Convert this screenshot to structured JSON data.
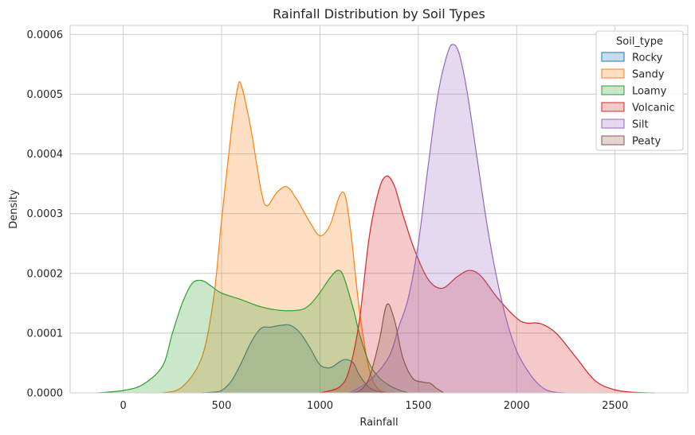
{
  "chart_data": {
    "type": "area",
    "title": "Rainfall Distribution by Soil Types",
    "xlabel": "Rainfall",
    "ylabel": "Density",
    "xlim": [
      -270,
      2870
    ],
    "ylim": [
      0,
      0.000615
    ],
    "xticks": [
      0,
      500,
      1000,
      1500,
      2000,
      2500
    ],
    "xtick_labels": [
      "0",
      "500",
      "1000",
      "1500",
      "2000",
      "2500"
    ],
    "yticks": [
      0,
      0.0001,
      0.0002,
      0.0003,
      0.0004,
      0.0005,
      0.0006
    ],
    "ytick_labels": [
      "0.0000",
      "0.0001",
      "0.0002",
      "0.0003",
      "0.0004",
      "0.0005",
      "0.0006"
    ],
    "grid": true,
    "legend": {
      "title": "Soil_type",
      "placement": "top-right"
    },
    "series": [
      {
        "name": "Rocky",
        "color": "#1f77b4",
        "points": [
          [
            400,
            0
          ],
          [
            450,
            1e-06
          ],
          [
            500,
            4e-06
          ],
          [
            550,
            2e-05
          ],
          [
            600,
            5e-05
          ],
          [
            650,
            8.5e-05
          ],
          [
            700,
            0.000108
          ],
          [
            750,
            0.00011
          ],
          [
            800,
            0.000113
          ],
          [
            850,
            0.000113
          ],
          [
            900,
            0.0001
          ],
          [
            950,
            7.5e-05
          ],
          [
            1000,
            4.7e-05
          ],
          [
            1050,
            4.2e-05
          ],
          [
            1100,
            5.2e-05
          ],
          [
            1130,
            5.6e-05
          ],
          [
            1170,
            5e-05
          ],
          [
            1200,
            3e-05
          ],
          [
            1250,
            9e-06
          ],
          [
            1300,
            2e-06
          ],
          [
            1350,
            0
          ]
        ]
      },
      {
        "name": "Sandy",
        "color": "#ff7f0e",
        "points": [
          [
            200,
            0
          ],
          [
            300,
            1e-05
          ],
          [
            400,
            6e-05
          ],
          [
            460,
            0.00016
          ],
          [
            500,
            0.00029
          ],
          [
            550,
            0.00044
          ],
          [
            580,
            0.000508
          ],
          [
            600,
            0.000515
          ],
          [
            650,
            0.00044
          ],
          [
            700,
            0.00034
          ],
          [
            730,
            0.000313
          ],
          [
            780,
            0.000335
          ],
          [
            830,
            0.000345
          ],
          [
            880,
            0.000325
          ],
          [
            950,
            0.000285
          ],
          [
            1000,
            0.000263
          ],
          [
            1050,
            0.00028
          ],
          [
            1100,
            0.00033
          ],
          [
            1130,
            0.000328
          ],
          [
            1160,
            0.00026
          ],
          [
            1200,
            0.00014
          ],
          [
            1250,
            4e-05
          ],
          [
            1300,
            5e-06
          ],
          [
            1360,
            0
          ]
        ]
      },
      {
        "name": "Loamy",
        "color": "#2ca02c",
        "points": [
          [
            -130,
            0
          ],
          [
            0,
            4e-06
          ],
          [
            100,
            1.4e-05
          ],
          [
            200,
            4.5e-05
          ],
          [
            250,
            0.0001
          ],
          [
            300,
            0.00015
          ],
          [
            350,
            0.000183
          ],
          [
            400,
            0.000188
          ],
          [
            450,
            0.000178
          ],
          [
            500,
            0.000167
          ],
          [
            600,
            0.000156
          ],
          [
            700,
            0.000144
          ],
          [
            800,
            0.000138
          ],
          [
            900,
            0.000139
          ],
          [
            950,
            0.000148
          ],
          [
            1000,
            0.000168
          ],
          [
            1050,
            0.000192
          ],
          [
            1090,
            0.000205
          ],
          [
            1120,
            0.000195
          ],
          [
            1170,
            0.00014
          ],
          [
            1200,
            0.0001
          ],
          [
            1250,
            5e-05
          ],
          [
            1300,
            2.6e-05
          ],
          [
            1350,
            1.3e-05
          ],
          [
            1400,
            5e-06
          ],
          [
            1450,
            0
          ]
        ]
      },
      {
        "name": "Volcanic",
        "color": "#d62728",
        "points": [
          [
            1000,
            0
          ],
          [
            1100,
            1e-05
          ],
          [
            1150,
            4e-05
          ],
          [
            1200,
            0.00012
          ],
          [
            1250,
            0.00026
          ],
          [
            1300,
            0.00034
          ],
          [
            1340,
            0.000363
          ],
          [
            1380,
            0.000345
          ],
          [
            1420,
            0.0003
          ],
          [
            1480,
            0.00024
          ],
          [
            1550,
            0.00019
          ],
          [
            1620,
            0.000175
          ],
          [
            1700,
            0.000195
          ],
          [
            1760,
            0.000205
          ],
          [
            1820,
            0.000195
          ],
          [
            1900,
            0.00016
          ],
          [
            2000,
            0.000125
          ],
          [
            2050,
            0.000117
          ],
          [
            2120,
            0.000116
          ],
          [
            2200,
            0.0001
          ],
          [
            2300,
            6e-05
          ],
          [
            2400,
            2e-05
          ],
          [
            2500,
            5e-06
          ],
          [
            2600,
            1e-06
          ],
          [
            2700,
            0
          ]
        ]
      },
      {
        "name": "Silt",
        "color": "#9467bd",
        "points": [
          [
            1150,
            0
          ],
          [
            1250,
            2e-05
          ],
          [
            1350,
            6e-05
          ],
          [
            1400,
            0.00011
          ],
          [
            1450,
            0.00016
          ],
          [
            1500,
            0.00025
          ],
          [
            1550,
            0.00038
          ],
          [
            1600,
            0.0005
          ],
          [
            1650,
            0.00057
          ],
          [
            1680,
            0.000583
          ],
          [
            1710,
            0.000565
          ],
          [
            1750,
            0.0005
          ],
          [
            1800,
            0.00039
          ],
          [
            1850,
            0.00028
          ],
          [
            1900,
            0.00019
          ],
          [
            1950,
            0.00012
          ],
          [
            2000,
            7e-05
          ],
          [
            2050,
            4e-05
          ],
          [
            2100,
            1.8e-05
          ],
          [
            2150,
            5e-06
          ],
          [
            2200,
            1e-06
          ],
          [
            2250,
            0
          ]
        ]
      },
      {
        "name": "Peaty",
        "color": "#8c564b",
        "points": [
          [
            1150,
            0
          ],
          [
            1200,
            3e-06
          ],
          [
            1250,
            2.5e-05
          ],
          [
            1300,
            8.5e-05
          ],
          [
            1340,
            0.000148
          ],
          [
            1380,
            0.00012
          ],
          [
            1420,
            6e-05
          ],
          [
            1470,
            2.5e-05
          ],
          [
            1520,
            1.8e-05
          ],
          [
            1560,
            1.6e-05
          ],
          [
            1590,
            8e-06
          ],
          [
            1630,
            0
          ]
        ]
      }
    ]
  }
}
